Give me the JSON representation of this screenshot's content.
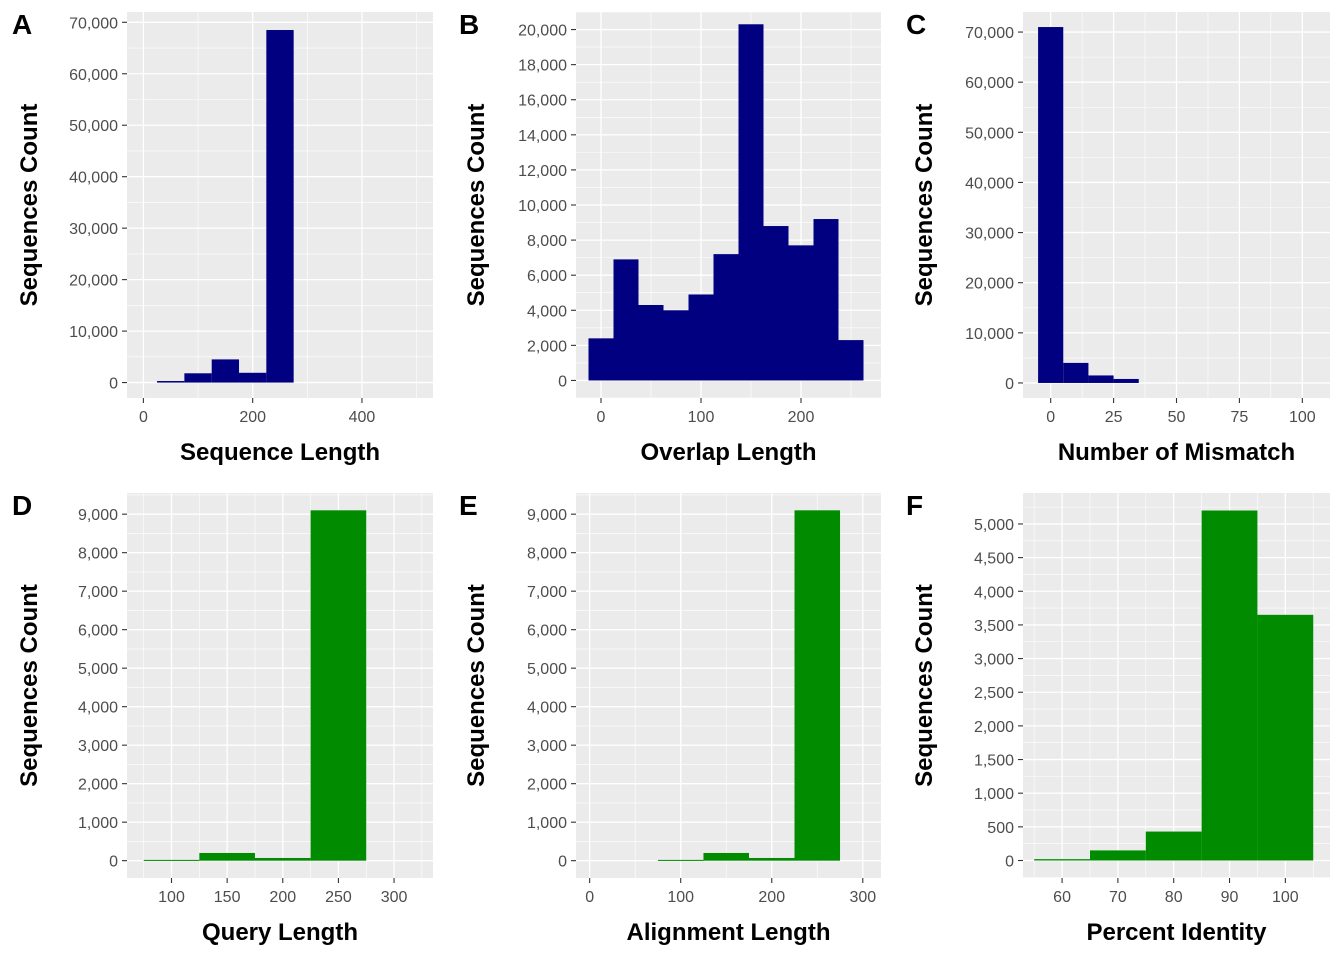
{
  "colors": {
    "panel_background": "#ebebeb",
    "grid_major": "#ffffff",
    "tick": "#333333",
    "bar_top_row": "#000080",
    "bar_bottom_row": "#008b00"
  },
  "chart_data": [
    {
      "panel": "A",
      "type": "bar",
      "xlabel": "Sequence Length",
      "ylabel": "Sequences Count",
      "xlim": [
        -30,
        530
      ],
      "ylim": [
        -3000,
        72000
      ],
      "x_ticks": [
        0,
        200,
        400
      ],
      "x_tick_labels": [
        "0",
        "200",
        "400"
      ],
      "y_ticks": [
        0,
        10000,
        20000,
        30000,
        40000,
        50000,
        60000,
        70000
      ],
      "y_tick_labels": [
        "0",
        "10,000",
        "20,000",
        "30,000",
        "40,000",
        "50,000",
        "60,000",
        "70,000"
      ],
      "color": "#000080",
      "bins": [
        {
          "x0": 25,
          "x1": 75,
          "count": 300
        },
        {
          "x0": 75,
          "x1": 125,
          "count": 1800
        },
        {
          "x0": 125,
          "x1": 175,
          "count": 4500
        },
        {
          "x0": 175,
          "x1": 225,
          "count": 1900
        },
        {
          "x0": 225,
          "x1": 275,
          "count": 68500
        }
      ]
    },
    {
      "panel": "B",
      "type": "bar",
      "xlabel": "Overlap Length",
      "ylabel": "Sequences Count",
      "xlim": [
        -25,
        280
      ],
      "ylim": [
        -1000,
        21000
      ],
      "x_ticks": [
        0,
        100,
        200
      ],
      "x_tick_labels": [
        "0",
        "100",
        "200"
      ],
      "y_ticks": [
        0,
        2000,
        4000,
        6000,
        8000,
        10000,
        12000,
        14000,
        16000,
        18000,
        20000
      ],
      "y_tick_labels": [
        "0",
        "2,000",
        "4,000",
        "6,000",
        "8,000",
        "10,000",
        "12,000",
        "14,000",
        "16,000",
        "18,000",
        "20,000"
      ],
      "color": "#000080",
      "bins": [
        {
          "x0": -12.5,
          "x1": 12.5,
          "count": 2400
        },
        {
          "x0": 12.5,
          "x1": 37.5,
          "count": 6900
        },
        {
          "x0": 37.5,
          "x1": 62.5,
          "count": 4300
        },
        {
          "x0": 62.5,
          "x1": 87.5,
          "count": 4000
        },
        {
          "x0": 87.5,
          "x1": 112.5,
          "count": 4900
        },
        {
          "x0": 112.5,
          "x1": 137.5,
          "count": 7200
        },
        {
          "x0": 137.5,
          "x1": 162.5,
          "count": 20300
        },
        {
          "x0": 162.5,
          "x1": 187.5,
          "count": 8800
        },
        {
          "x0": 187.5,
          "x1": 212.5,
          "count": 7700
        },
        {
          "x0": 212.5,
          "x1": 237.5,
          "count": 9200
        },
        {
          "x0": 237.5,
          "x1": 262.5,
          "count": 2300
        }
      ]
    },
    {
      "panel": "C",
      "type": "bar",
      "xlabel": "Number of Mismatch",
      "ylabel": "Sequences Count",
      "xlim": [
        -11,
        111
      ],
      "ylim": [
        -3000,
        74000
      ],
      "x_ticks": [
        0,
        25,
        50,
        75,
        100
      ],
      "x_tick_labels": [
        "0",
        "25",
        "50",
        "75",
        "100"
      ],
      "y_ticks": [
        0,
        10000,
        20000,
        30000,
        40000,
        50000,
        60000,
        70000
      ],
      "y_tick_labels": [
        "0",
        "10,000",
        "20,000",
        "30,000",
        "40,000",
        "50,000",
        "60,000",
        "70,000"
      ],
      "color": "#000080",
      "bins": [
        {
          "x0": -5,
          "x1": 5,
          "count": 71000
        },
        {
          "x0": 5,
          "x1": 15,
          "count": 4000
        },
        {
          "x0": 15,
          "x1": 25,
          "count": 1500
        },
        {
          "x0": 25,
          "x1": 35,
          "count": 800
        }
      ]
    },
    {
      "panel": "D",
      "type": "bar",
      "xlabel": "Query Length",
      "ylabel": "Sequences Count",
      "xlim": [
        60,
        335
      ],
      "ylim": [
        -450,
        9550
      ],
      "x_ticks": [
        100,
        150,
        200,
        250,
        300
      ],
      "x_tick_labels": [
        "100",
        "150",
        "200",
        "250",
        "300"
      ],
      "y_ticks": [
        0,
        1000,
        2000,
        3000,
        4000,
        5000,
        6000,
        7000,
        8000,
        9000
      ],
      "y_tick_labels": [
        "0",
        "1,000",
        "2,000",
        "3,000",
        "4,000",
        "5,000",
        "6,000",
        "7,000",
        "8,000",
        "9,000"
      ],
      "color": "#008b00",
      "bins": [
        {
          "x0": 75,
          "x1": 125,
          "count": 20
        },
        {
          "x0": 125,
          "x1": 175,
          "count": 200
        },
        {
          "x0": 175,
          "x1": 225,
          "count": 70
        },
        {
          "x0": 225,
          "x1": 275,
          "count": 9100
        }
      ]
    },
    {
      "panel": "E",
      "type": "bar",
      "xlabel": "Alignment Length",
      "ylabel": "Sequences Count",
      "xlim": [
        -15,
        320
      ],
      "ylim": [
        -450,
        9550
      ],
      "x_ticks": [
        0,
        100,
        200,
        300
      ],
      "x_tick_labels": [
        "0",
        "100",
        "200",
        "300"
      ],
      "y_ticks": [
        0,
        1000,
        2000,
        3000,
        4000,
        5000,
        6000,
        7000,
        8000,
        9000
      ],
      "y_tick_labels": [
        "0",
        "1,000",
        "2,000",
        "3,000",
        "4,000",
        "5,000",
        "6,000",
        "7,000",
        "8,000",
        "9,000"
      ],
      "color": "#008b00",
      "bins": [
        {
          "x0": 75,
          "x1": 125,
          "count": 20
        },
        {
          "x0": 125,
          "x1": 175,
          "count": 200
        },
        {
          "x0": 175,
          "x1": 225,
          "count": 70
        },
        {
          "x0": 225,
          "x1": 275,
          "count": 9100
        }
      ]
    },
    {
      "panel": "F",
      "type": "bar",
      "xlabel": "Percent Identity",
      "ylabel": "Sequences Count",
      "xlim": [
        53,
        108
      ],
      "ylim": [
        -260,
        5460
      ],
      "x_ticks": [
        60,
        70,
        80,
        90,
        100
      ],
      "x_tick_labels": [
        "60",
        "70",
        "80",
        "90",
        "100"
      ],
      "y_ticks": [
        0,
        500,
        1000,
        1500,
        2000,
        2500,
        3000,
        3500,
        4000,
        4500,
        5000
      ],
      "y_tick_labels": [
        "0",
        "500",
        "1,000",
        "1,500",
        "2,000",
        "2,500",
        "3,000",
        "3,500",
        "4,000",
        "4,500",
        "5,000"
      ],
      "color": "#008b00",
      "bins": [
        {
          "x0": 55,
          "x1": 65,
          "count": 20
        },
        {
          "x0": 65,
          "x1": 75,
          "count": 150
        },
        {
          "x0": 75,
          "x1": 85,
          "count": 430
        },
        {
          "x0": 85,
          "x1": 95,
          "count": 5200
        },
        {
          "x0": 95,
          "x1": 105,
          "count": 3650
        }
      ]
    }
  ]
}
